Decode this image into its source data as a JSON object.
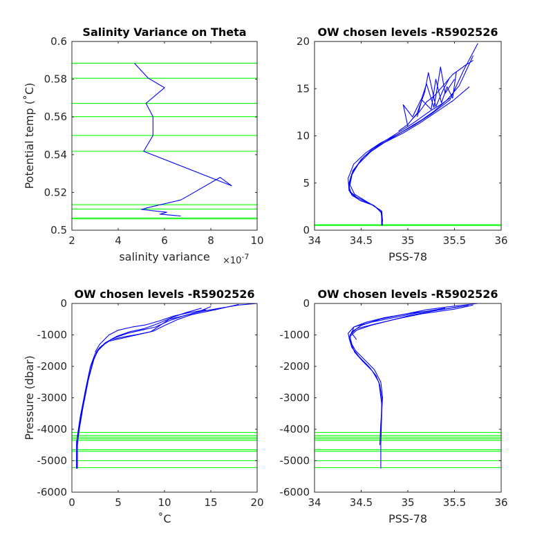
{
  "chart_data": [
    {
      "type": "line",
      "title": "Salinity Variance on Theta",
      "xlabel": "salinity variance",
      "ylabel": "Potential temp (˚C)",
      "x_exponent_label": "×10",
      "x_exponent_power": "-7",
      "xlim": [
        2,
        10
      ],
      "ylim": [
        0.5,
        0.6
      ],
      "xticks": [
        "2",
        "4",
        "6",
        "8",
        "10"
      ],
      "yticks": [
        "0.5",
        "0.52",
        "0.54",
        "0.56",
        "0.58",
        "0.6"
      ],
      "series": [
        {
          "color": "#0000ff",
          "x": [
            6.7,
            5.8,
            6.1,
            5.0,
            5.3,
            6.7,
            7.2,
            8.4,
            8.9,
            5.1,
            5.5,
            5.5,
            5.2,
            6.0,
            5.3,
            4.7
          ],
          "y": [
            0.5075,
            0.5085,
            0.5095,
            0.511,
            0.512,
            0.516,
            0.5195,
            0.528,
            0.5235,
            0.5418,
            0.5502,
            0.5602,
            0.5672,
            0.5755,
            0.5805,
            0.5885
          ]
        }
      ],
      "hlines": {
        "color": "#00ff00",
        "y": [
          0.506,
          0.5065,
          0.5112,
          0.5135,
          0.5418,
          0.5502,
          0.5602,
          0.5672,
          0.5805,
          0.5885
        ]
      }
    },
    {
      "type": "line",
      "title": "OW chosen levels -R5902526",
      "xlabel": "PSS-78",
      "ylabel": "",
      "xlim": [
        34,
        36
      ],
      "ylim": [
        0,
        20
      ],
      "xticks": [
        "34",
        "34.5",
        "35",
        "35.5",
        "36"
      ],
      "yticks": [
        "0",
        "5",
        "10",
        "15",
        "20"
      ],
      "series": [
        {
          "color": "#0000ff",
          "x": [
            34.72,
            34.73,
            34.72,
            34.62,
            34.48,
            34.38,
            34.37,
            34.4,
            34.5,
            34.62,
            34.76,
            34.92,
            35.05,
            35.15,
            35.25,
            35.35,
            35.45
          ],
          "y": [
            0.5,
            1.0,
            2.0,
            2.7,
            3.2,
            4.0,
            5.0,
            6.0,
            7.5,
            8.6,
            9.5,
            10.5,
            11.3,
            12.0,
            12.7,
            13.3,
            14.0
          ]
        },
        {
          "color": "#0000ff",
          "x": [
            34.72,
            34.72,
            34.6,
            34.45,
            34.37,
            34.36,
            34.42,
            34.55,
            34.7,
            34.9,
            35.08,
            35.25,
            35.45,
            35.6,
            35.75
          ],
          "y": [
            0.6,
            2.0,
            2.8,
            3.5,
            4.2,
            5.5,
            7.0,
            8.2,
            9.2,
            10.2,
            11.2,
            12.3,
            13.8,
            17.0,
            19.8
          ]
        },
        {
          "color": "#0000ff",
          "x": [
            34.73,
            34.71,
            34.58,
            34.43,
            34.38,
            34.41,
            34.53,
            34.68,
            34.85,
            35.0,
            35.15,
            35.28,
            35.42,
            35.55,
            35.7
          ],
          "y": [
            0.5,
            2.1,
            2.9,
            3.8,
            4.8,
            6.3,
            7.8,
            8.9,
            9.9,
            10.8,
            11.7,
            12.6,
            13.8,
            15.3,
            18.5
          ]
        },
        {
          "color": "#0000ff",
          "x": [
            34.72,
            34.72,
            34.64,
            34.5,
            34.4,
            34.37,
            34.39,
            34.47,
            34.6,
            34.75,
            34.95,
            35.12,
            35.3,
            35.48,
            35.66
          ],
          "y": [
            0.5,
            1.8,
            2.6,
            3.1,
            3.7,
            4.6,
            5.7,
            7.0,
            8.3,
            9.3,
            10.3,
            11.3,
            12.5,
            13.7,
            15.2
          ]
        },
        {
          "color": "#0000ff",
          "x": [
            34.9,
            35.0,
            35.1,
            35.18,
            35.22,
            35.3,
            35.38,
            35.45
          ],
          "y": [
            10.5,
            11.2,
            12.4,
            14.6,
            16.7,
            13.1,
            14.9,
            16.2
          ]
        },
        {
          "color": "#0000ff",
          "x": [
            35.0,
            34.95,
            35.05,
            35.15,
            35.2,
            35.28,
            35.35,
            35.4,
            35.5
          ],
          "y": [
            11.0,
            13.3,
            12.0,
            14.0,
            15.5,
            13.0,
            17.3,
            14.5,
            16.0
          ]
        },
        {
          "color": "#0000ff",
          "x": [
            35.05,
            35.12,
            35.2,
            35.28,
            35.35,
            35.42,
            35.48,
            35.55,
            35.62,
            35.7
          ],
          "y": [
            11.8,
            12.5,
            13.6,
            14.2,
            15.0,
            15.8,
            16.5,
            17.0,
            17.5,
            18.0
          ]
        },
        {
          "color": "#0000ff",
          "x": [
            35.1,
            35.15,
            35.25,
            35.3,
            35.36,
            35.42,
            35.48,
            35.52
          ],
          "y": [
            12.0,
            13.8,
            12.8,
            16.0,
            13.5,
            15.2,
            14.0,
            16.8
          ]
        }
      ],
      "hlines": {
        "color": "#00ff00",
        "y": [
          0.5,
          0.58
        ]
      }
    },
    {
      "type": "line",
      "title": "OW chosen levels -R5902526",
      "xlabel": "˚C",
      "ylabel": "Pressure (dbar)",
      "xlim": [
        0,
        20
      ],
      "ylim": [
        -6000,
        0
      ],
      "xticks": [
        "0",
        "5",
        "10",
        "15",
        "20"
      ],
      "yticks": [
        "-6000",
        "-5000",
        "-4000",
        "-3000",
        "-2000",
        "-1000",
        "0"
      ],
      "series": [
        {
          "color": "#0000ff",
          "x": [
            0.5,
            0.5,
            0.6,
            0.9,
            1.5,
            2.0,
            2.5,
            3.0,
            4.0,
            5.5,
            7.0,
            8.5,
            9.5,
            10.5,
            12.0,
            14.0,
            16.0,
            18.0,
            20.0
          ],
          "y": [
            -5250,
            -4600,
            -4200,
            -3600,
            -2700,
            -2000,
            -1600,
            -1400,
            -1200,
            -1100,
            -1000,
            -900,
            -700,
            -500,
            -400,
            -250,
            -150,
            -50,
            0
          ]
        },
        {
          "color": "#0000ff",
          "x": [
            0.6,
            0.6,
            0.8,
            1.2,
            1.8,
            2.3,
            2.8,
            3.5,
            4.5,
            6.0,
            7.5,
            9.0,
            10.5,
            12.0,
            13.5,
            15.0
          ],
          "y": [
            -5250,
            -4500,
            -4000,
            -3300,
            -2400,
            -1800,
            -1500,
            -1300,
            -1100,
            -950,
            -850,
            -750,
            -550,
            -400,
            -280,
            -100
          ]
        },
        {
          "color": "#0000ff",
          "x": [
            0.5,
            0.5,
            0.7,
            1.0,
            1.6,
            2.2,
            2.7,
            3.2,
            4.2,
            5.8,
            7.2,
            8.8,
            10.0,
            11.5,
            13.0,
            15.5,
            18.0
          ],
          "y": [
            -5250,
            -4400,
            -4100,
            -3500,
            -2600,
            -1900,
            -1550,
            -1350,
            -1150,
            -1050,
            -980,
            -880,
            -700,
            -500,
            -350,
            -200,
            -30
          ]
        },
        {
          "color": "#0000ff",
          "x": [
            0.6,
            0.8,
            1.1,
            1.7,
            2.4,
            2.9,
            3.6,
            4.8,
            6.2,
            7.8,
            9.2,
            10.8,
            12.2,
            14.0
          ],
          "y": [
            -4300,
            -4000,
            -3400,
            -2500,
            -1750,
            -1450,
            -1250,
            -1050,
            -900,
            -800,
            -650,
            -450,
            -300,
            -150
          ]
        },
        {
          "color": "#0000ff",
          "x": [
            2.5,
            3.0,
            4.0,
            5.0,
            6.5,
            8.0,
            9.5,
            11.0,
            12.5,
            14.5
          ],
          "y": [
            -1550,
            -1300,
            -1000,
            -850,
            -750,
            -680,
            -550,
            -400,
            -300,
            -200
          ]
        }
      ],
      "hlines": {
        "color": "#00ff00",
        "y": [
          -4100,
          -4200,
          -4250,
          -4300,
          -4350,
          -4650,
          -4700,
          -5000,
          -5220
        ]
      }
    },
    {
      "type": "line",
      "title": "OW chosen levels -R5902526",
      "xlabel": "PSS-78",
      "ylabel": "",
      "xlim": [
        34,
        36
      ],
      "ylim": [
        -6000,
        0
      ],
      "xticks": [
        "34",
        "34.5",
        "35",
        "35.5",
        "36"
      ],
      "yticks": [
        "-6000",
        "-5000",
        "-4000",
        "-3000",
        "-2000",
        "-1000",
        "0"
      ],
      "series": [
        {
          "color": "#0000ff",
          "x": [
            34.71,
            34.71,
            34.72,
            34.72,
            34.7,
            34.66,
            34.58,
            34.48,
            34.4,
            34.37,
            34.4,
            34.5,
            34.7,
            34.95,
            35.2,
            35.45,
            35.75
          ],
          "y": [
            -5250,
            -4500,
            -3500,
            -3000,
            -2600,
            -2300,
            -2000,
            -1700,
            -1400,
            -1100,
            -900,
            -700,
            -500,
            -350,
            -200,
            -100,
            0
          ]
        },
        {
          "color": "#0000ff",
          "x": [
            34.7,
            34.71,
            34.73,
            34.71,
            34.64,
            34.54,
            34.44,
            34.38,
            34.36,
            34.42,
            34.6,
            34.85,
            35.1,
            35.4
          ],
          "y": [
            -4500,
            -3800,
            -3000,
            -2500,
            -2100,
            -1800,
            -1500,
            -1200,
            -950,
            -750,
            -600,
            -450,
            -300,
            -150
          ]
        },
        {
          "color": "#0000ff",
          "x": [
            34.71,
            34.72,
            34.69,
            34.62,
            34.52,
            34.43,
            34.39,
            34.38,
            34.45,
            34.65,
            34.9,
            35.15,
            35.5,
            35.7
          ],
          "y": [
            -4200,
            -3200,
            -2500,
            -2150,
            -1850,
            -1550,
            -1250,
            -1000,
            -800,
            -650,
            -480,
            -330,
            -180,
            -50
          ]
        },
        {
          "color": "#0000ff",
          "x": [
            34.4,
            34.38,
            34.45,
            34.6,
            34.8,
            35.0,
            35.25,
            35.55
          ],
          "y": [
            -1300,
            -1050,
            -850,
            -700,
            -550,
            -400,
            -250,
            -100
          ]
        },
        {
          "color": "#0000ff",
          "x": [
            34.45,
            34.4,
            34.42,
            34.55,
            34.75,
            35.05,
            35.35,
            35.65
          ],
          "y": [
            -1150,
            -950,
            -750,
            -600,
            -450,
            -300,
            -200,
            -60
          ]
        }
      ],
      "hlines": {
        "color": "#00ff00",
        "y": [
          -4100,
          -4200,
          -4250,
          -4300,
          -4350,
          -4650,
          -4700,
          -5000,
          -5220
        ]
      }
    }
  ]
}
